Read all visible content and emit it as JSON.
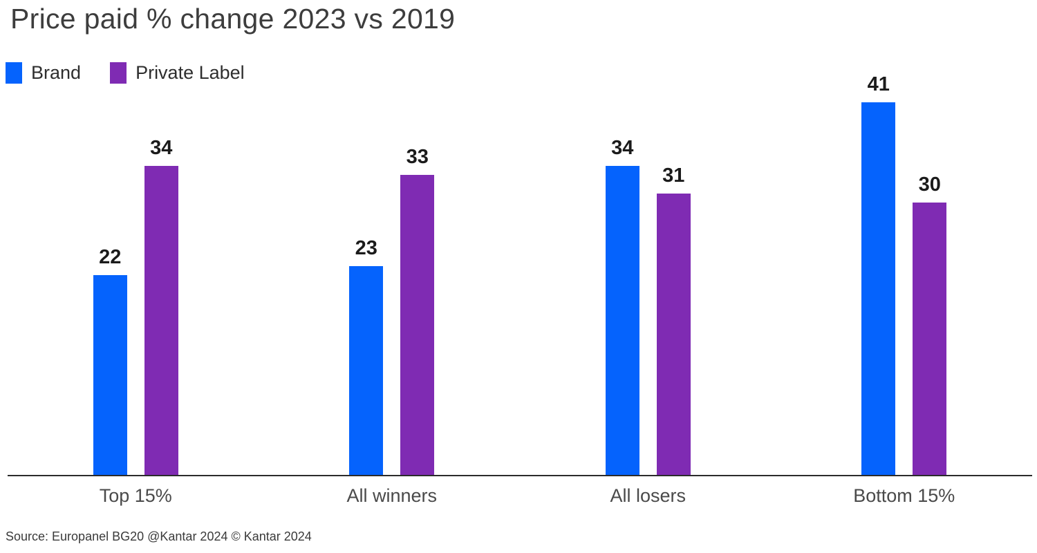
{
  "title": "Price paid % change 2023 vs 2019",
  "source": "Source: Europanel BG20 @Kantar 2024 © Kantar 2024",
  "legend": [
    {
      "label": "Brand",
      "color": "#0563fd"
    },
    {
      "label": "Private Label",
      "color": "#7f2bb3"
    }
  ],
  "chart_data": {
    "type": "bar",
    "title": "Price paid % change 2023 vs 2019",
    "categories": [
      "Top 15%",
      "All winners",
      "All losers",
      "Bottom 15%"
    ],
    "series": [
      {
        "name": "Brand",
        "color": "#0563fd",
        "values": [
          22,
          23,
          34,
          41
        ]
      },
      {
        "name": "Private Label",
        "color": "#7f2bb3",
        "values": [
          34,
          33,
          31,
          30
        ]
      }
    ],
    "xlabel": "",
    "ylabel": "",
    "ylim": [
      0,
      45
    ],
    "grid": false,
    "legend_position": "top-left",
    "value_labels": true,
    "source": "Source: Europanel BG20 @Kantar 2024 © Kantar 2024"
  }
}
